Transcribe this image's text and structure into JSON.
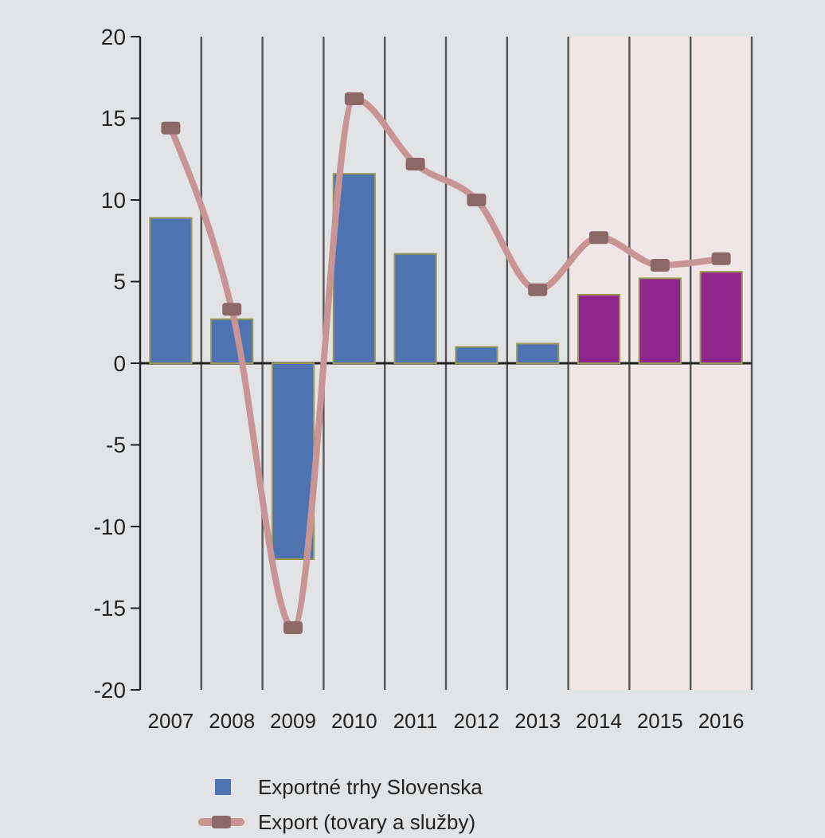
{
  "chart_data": {
    "type": "bar",
    "categories": [
      "2007",
      "2008",
      "2009",
      "2010",
      "2011",
      "2012",
      "2013",
      "2014",
      "2015",
      "2016"
    ],
    "series": [
      {
        "name": "Exportné trhy Slovenska",
        "colors": [
          "#4f72b0",
          "#4f72b0",
          "#4f72b0",
          "#4f72b0",
          "#4f72b0",
          "#4f72b0",
          "#4f72b0",
          "#8e268e",
          "#8e268e",
          "#8e268e"
        ],
        "color": "#4f72b0",
        "values": [
          8.9,
          2.7,
          -12.0,
          11.6,
          6.7,
          1.0,
          1.2,
          4.2,
          5.2,
          5.6
        ]
      },
      {
        "name": "Export (tovary a služby)",
        "type": "line",
        "color": "#c99495",
        "marker": "square",
        "values": [
          14.4,
          3.3,
          -16.2,
          16.2,
          12.2,
          10.0,
          4.5,
          7.7,
          6.0,
          6.4
        ]
      }
    ],
    "ylim": [
      -20,
      20
    ],
    "yticks": [
      20,
      15,
      10,
      5,
      0,
      -5,
      -10,
      -15,
      -20
    ],
    "bands": [
      {
        "axis": "x",
        "from": "2014",
        "to": "2016",
        "color": "#f0e6e5"
      }
    ],
    "grid": "x",
    "legend": "bottom"
  }
}
